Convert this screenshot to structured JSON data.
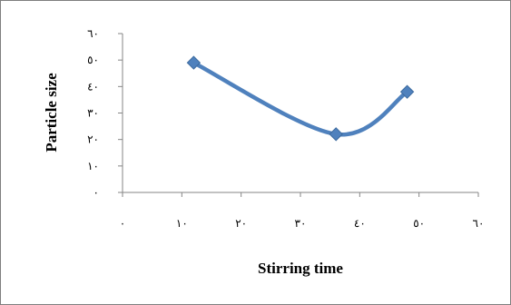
{
  "chart_data": {
    "type": "scatter",
    "title": "",
    "xlabel": "Stirring time",
    "ylabel": "Particle size",
    "xlim": [
      0,
      60
    ],
    "ylim": [
      0,
      60
    ],
    "x_ticks": [
      0,
      10,
      20,
      30,
      40,
      50,
      60
    ],
    "y_ticks": [
      0,
      10,
      20,
      30,
      40,
      50,
      60
    ],
    "x_tick_labels": [
      "٠",
      "١٠",
      "٢٠",
      "٣٠",
      "٤٠",
      "٥٠",
      "٦٠"
    ],
    "y_tick_labels": [
      "٠",
      "١٠",
      "٢٠",
      "٣٠",
      "٤٠",
      "٥٠",
      "٦٠"
    ],
    "line_style": "smooth",
    "marker": "diamond",
    "series_color": "#4f81bd",
    "grid": false,
    "legend": "none",
    "series": [
      {
        "x": [
          12,
          36,
          48
        ],
        "y": [
          49,
          22,
          38
        ]
      }
    ]
  }
}
